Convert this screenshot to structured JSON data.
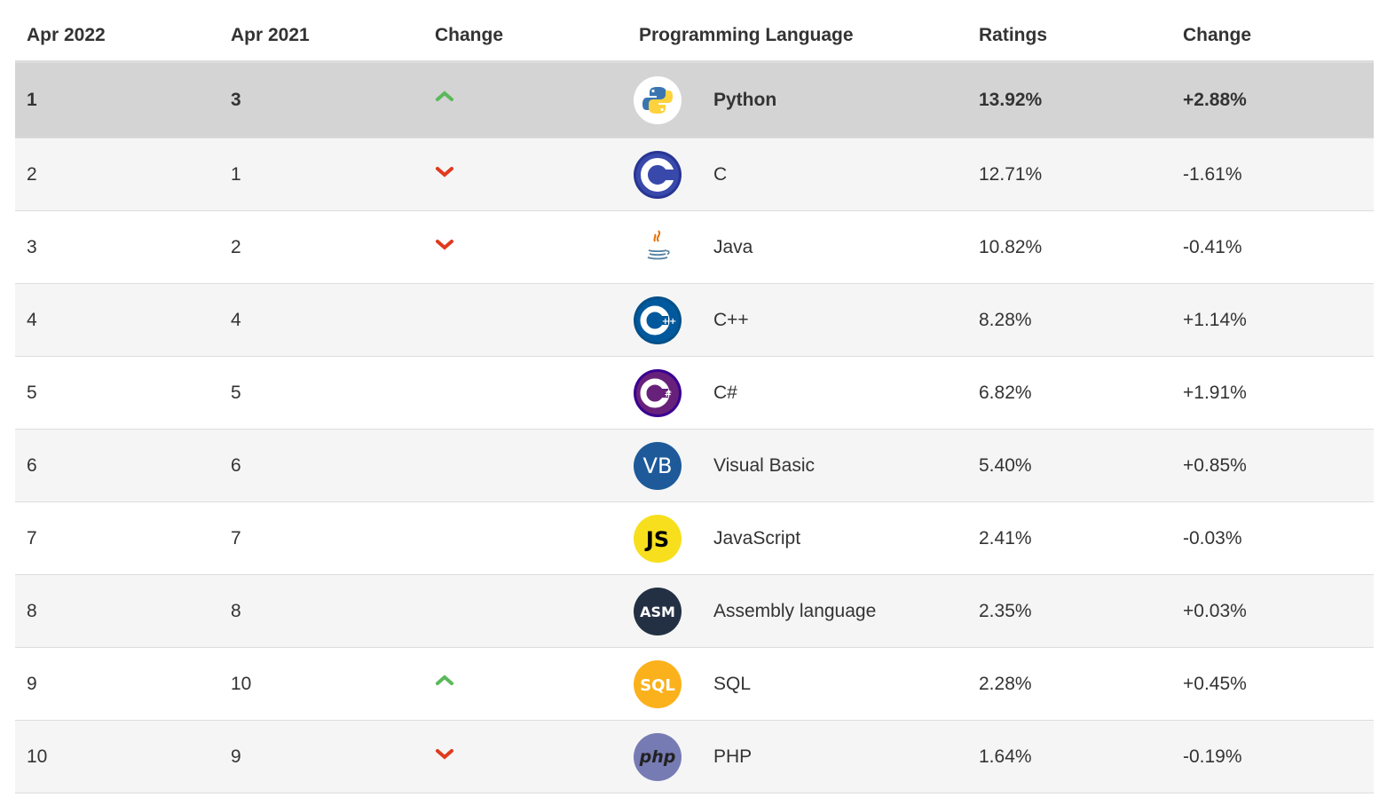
{
  "headers": {
    "rank_now": "Apr 2022",
    "rank_prev": "Apr 2021",
    "change": "Change",
    "language": "Programming Language",
    "ratings": "Ratings",
    "change_pct": "Change"
  },
  "rows": [
    {
      "rank_now": "1",
      "rank_prev": "3",
      "trend": "up",
      "logo": "python-logo-icon",
      "language": "Python",
      "ratings": "13.92%",
      "change": "+2.88%"
    },
    {
      "rank_now": "2",
      "rank_prev": "1",
      "trend": "down",
      "logo": "c-logo-icon",
      "language": "C",
      "ratings": "12.71%",
      "change": "-1.61%"
    },
    {
      "rank_now": "3",
      "rank_prev": "2",
      "trend": "down",
      "logo": "java-logo-icon",
      "language": "Java",
      "ratings": "10.82%",
      "change": "-0.41%"
    },
    {
      "rank_now": "4",
      "rank_prev": "4",
      "trend": "none",
      "logo": "cpp-logo-icon",
      "language": "C++",
      "ratings": "8.28%",
      "change": "+1.14%"
    },
    {
      "rank_now": "5",
      "rank_prev": "5",
      "trend": "none",
      "logo": "csharp-logo-icon",
      "language": "C#",
      "ratings": "6.82%",
      "change": "+1.91%"
    },
    {
      "rank_now": "6",
      "rank_prev": "6",
      "trend": "none",
      "logo": "visual-basic-logo-icon",
      "language": "Visual Basic",
      "ratings": "5.40%",
      "change": "+0.85%"
    },
    {
      "rank_now": "7",
      "rank_prev": "7",
      "trend": "none",
      "logo": "javascript-logo-icon",
      "language": "JavaScript",
      "ratings": "2.41%",
      "change": "-0.03%"
    },
    {
      "rank_now": "8",
      "rank_prev": "8",
      "trend": "none",
      "logo": "assembly-logo-icon",
      "language": "Assembly language",
      "ratings": "2.35%",
      "change": "+0.03%"
    },
    {
      "rank_now": "9",
      "rank_prev": "10",
      "trend": "up",
      "logo": "sql-logo-icon",
      "language": "SQL",
      "ratings": "2.28%",
      "change": "+0.45%"
    },
    {
      "rank_now": "10",
      "rank_prev": "9",
      "trend": "down",
      "logo": "php-logo-icon",
      "language": "PHP",
      "ratings": "1.64%",
      "change": "-0.19%"
    }
  ],
  "logo_text": {
    "vb": "VB",
    "js": "JS",
    "asm": "ASM",
    "sql": "SQL",
    "php": "php"
  },
  "colors": {
    "up": "#5cb85c",
    "down": "#e03a1e",
    "highlight_row": "#d4d4d4",
    "alt_row": "#f5f5f5"
  }
}
